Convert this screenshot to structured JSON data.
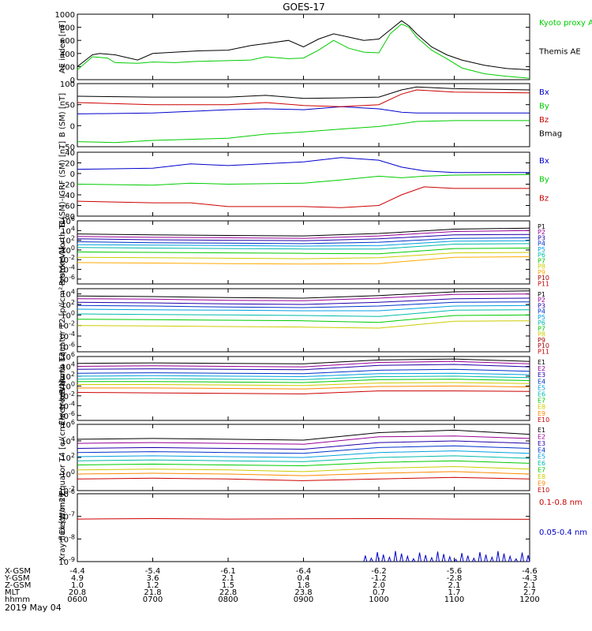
{
  "title": "GOES-17",
  "date_label": "2019 May 04",
  "time_ticks": [
    "0600",
    "0700",
    "0800",
    "0900",
    "1000",
    "1100",
    "1200"
  ],
  "ephemeris": {
    "rows": [
      {
        "label": "X-GSM",
        "values": [
          "-4.4",
          "-5.4",
          "-6.1",
          "-6.4",
          "-6.2",
          "-5.6",
          "-4.6"
        ]
      },
      {
        "label": "Y-GSM",
        "values": [
          "4.9",
          "3.6",
          "2.1",
          "0.4",
          "-1.2",
          "-2.8",
          "-4.3"
        ]
      },
      {
        "label": "Z-GSM",
        "values": [
          "1.0",
          "1.2",
          "1.5",
          "1.8",
          "2.0",
          "2.1",
          "2.1"
        ]
      },
      {
        "label": "MLT",
        "values": [
          "20.8",
          "21.8",
          "22.8",
          "23.8",
          "0.7",
          "1.7",
          "2.7"
        ]
      },
      {
        "label": "hhmm",
        "values": [
          "0600",
          "0700",
          "0800",
          "0900",
          "1000",
          "1100",
          "1200"
        ]
      }
    ]
  },
  "chart_data": [
    {
      "type": "line",
      "ylabel": "AE index [nT]",
      "ylim": [
        0,
        1000
      ],
      "yticks": [
        "0",
        "200",
        "400",
        "600",
        "800",
        "1000"
      ],
      "yscale": "linear",
      "xlim_hours": [
        6,
        12
      ],
      "series": [
        {
          "name": "Kyoto proxy AE",
          "color": "#00cc00",
          "x": [
            6.0,
            6.2,
            6.4,
            6.5,
            6.8,
            7.0,
            7.3,
            7.6,
            8.0,
            8.3,
            8.5,
            8.8,
            9.0,
            9.2,
            9.4,
            9.6,
            9.8,
            10.0,
            10.15,
            10.3,
            10.4,
            10.5,
            10.7,
            10.9,
            11.1,
            11.4,
            11.7,
            12.0
          ],
          "y": [
            150,
            350,
            330,
            260,
            250,
            270,
            260,
            280,
            290,
            300,
            350,
            320,
            330,
            450,
            600,
            480,
            420,
            410,
            700,
            850,
            800,
            650,
            450,
            320,
            180,
            90,
            50,
            20
          ]
        },
        {
          "name": "Themis AE",
          "color": "#000000",
          "x": [
            6.0,
            6.2,
            6.3,
            6.5,
            6.8,
            7.0,
            7.3,
            7.6,
            8.0,
            8.3,
            8.5,
            8.8,
            9.0,
            9.2,
            9.4,
            9.6,
            9.8,
            10.0,
            10.15,
            10.3,
            10.4,
            10.5,
            10.7,
            10.9,
            11.1,
            11.4,
            11.7,
            12.0
          ],
          "y": [
            200,
            380,
            400,
            380,
            300,
            400,
            420,
            440,
            450,
            520,
            550,
            600,
            500,
            620,
            700,
            650,
            600,
            620,
            760,
            900,
            820,
            700,
            500,
            380,
            300,
            220,
            170,
            150
          ]
        }
      ],
      "legend_position": "right"
    },
    {
      "type": "line",
      "ylabel": "B (SM) [nT]",
      "ylim": [
        -50,
        100
      ],
      "yticks": [
        "-50",
        "0",
        "50",
        "100"
      ],
      "yscale": "linear",
      "xlim_hours": [
        6,
        12
      ],
      "series": [
        {
          "name": "Bx",
          "color": "#0000cc",
          "x": [
            6.0,
            7.0,
            8.0,
            8.5,
            9.0,
            9.5,
            10.0,
            10.3,
            10.5,
            11.0,
            12.0
          ],
          "y": [
            28,
            30,
            38,
            40,
            38,
            45,
            40,
            32,
            30,
            30,
            30
          ]
        },
        {
          "name": "By",
          "color": "#00cc00",
          "x": [
            6.0,
            6.5,
            7.0,
            8.0,
            8.5,
            9.0,
            9.5,
            10.0,
            10.3,
            10.5,
            11.0,
            12.0
          ],
          "y": [
            -38,
            -40,
            -35,
            -30,
            -20,
            -15,
            -8,
            -2,
            5,
            10,
            12,
            12
          ]
        },
        {
          "name": "Bz",
          "color": "#cc0000",
          "x": [
            6.0,
            7.0,
            8.0,
            8.5,
            9.0,
            9.5,
            10.0,
            10.3,
            10.5,
            11.0,
            12.0
          ],
          "y": [
            55,
            50,
            50,
            55,
            48,
            45,
            50,
            75,
            85,
            80,
            78
          ]
        },
        {
          "name": "Bmag",
          "color": "#000000",
          "x": [
            6.0,
            7.0,
            8.0,
            8.5,
            9.0,
            9.5,
            10.0,
            10.3,
            10.5,
            11.0,
            12.0
          ],
          "y": [
            70,
            68,
            68,
            72,
            65,
            66,
            68,
            85,
            92,
            88,
            85
          ]
        }
      ],
      "legend_position": "right"
    },
    {
      "type": "line",
      "ylabel": "B (SM)-IGRF (SM) [nT]",
      "ylim": [
        -80,
        40
      ],
      "yticks": [
        "-80",
        "-60",
        "-40",
        "-20",
        "0",
        "20",
        "40"
      ],
      "yscale": "linear",
      "xlim_hours": [
        6,
        12
      ],
      "series": [
        {
          "name": "Bx",
          "color": "#0000cc",
          "x": [
            6.0,
            7.0,
            7.5,
            8.0,
            9.0,
            9.5,
            10.0,
            10.3,
            10.6,
            11.0,
            12.0
          ],
          "y": [
            8,
            10,
            18,
            15,
            22,
            30,
            25,
            12,
            5,
            2,
            2
          ]
        },
        {
          "name": "By",
          "color": "#00cc00",
          "x": [
            6.0,
            7.0,
            7.5,
            8.0,
            9.0,
            9.5,
            10.0,
            10.3,
            10.6,
            11.0,
            12.0
          ],
          "y": [
            -20,
            -22,
            -18,
            -20,
            -18,
            -12,
            -5,
            -8,
            -5,
            -3,
            -2
          ]
        },
        {
          "name": "Bz",
          "color": "#cc0000",
          "x": [
            6.0,
            7.0,
            7.5,
            8.0,
            9.0,
            9.5,
            10.0,
            10.3,
            10.6,
            11.0,
            12.0
          ],
          "y": [
            -52,
            -55,
            -55,
            -62,
            -62,
            -64,
            -60,
            -40,
            -25,
            -28,
            -28
          ]
        }
      ],
      "legend_position": "right"
    },
    {
      "type": "line",
      "ylabel": "Protons North T1",
      "ylim_exp": [
        -7,
        6
      ],
      "yticks": [
        "10^-6",
        "10^-4",
        "10^-2",
        "10^0",
        "10^2",
        "10^4",
        "10^6"
      ],
      "yscale": "log",
      "xlim_hours": [
        6,
        12
      ],
      "channels": [
        "P1",
        "P2",
        "P3",
        "P4",
        "P5",
        "P6",
        "P7",
        "P8",
        "P9",
        "P10",
        "P11"
      ],
      "series": [
        {
          "name": "P1",
          "color": "#000000",
          "y_log10": [
            3.3,
            3.1,
            3.0,
            2.9,
            3.4,
            4.3,
            4.5
          ]
        },
        {
          "name": "P2",
          "color": "#990099",
          "y_log10": [
            2.8,
            2.6,
            2.5,
            2.4,
            2.9,
            3.8,
            4.0
          ]
        },
        {
          "name": "P3",
          "color": "#2200aa",
          "y_log10": [
            2.3,
            2.1,
            2.0,
            1.9,
            2.3,
            3.1,
            3.2
          ]
        },
        {
          "name": "P4",
          "color": "#0033cc",
          "y_log10": [
            1.7,
            1.5,
            1.4,
            1.3,
            1.6,
            2.4,
            2.5
          ]
        },
        {
          "name": "P5",
          "color": "#00a0e0",
          "y_log10": [
            1.1,
            1.0,
            0.9,
            0.8,
            0.9,
            1.8,
            1.9
          ]
        },
        {
          "name": "P6",
          "color": "#00bbaa",
          "y_log10": [
            0.5,
            0.4,
            0.3,
            0.2,
            0.2,
            1.2,
            1.3
          ]
        },
        {
          "name": "P7",
          "color": "#00cc00",
          "y_log10": [
            -0.4,
            -0.5,
            -0.6,
            -0.7,
            -0.8,
            0.3,
            0.4
          ]
        },
        {
          "name": "P8",
          "color": "#cccc00",
          "y_log10": [
            -1.5,
            -1.6,
            -1.7,
            -1.8,
            -1.6,
            -0.6,
            -0.5
          ]
        },
        {
          "name": "P9",
          "color": "#ffaa00",
          "y_log10": [
            -2.6,
            -2.7,
            -2.8,
            -2.9,
            -2.8,
            -1.5,
            -1.4
          ]
        }
      ],
      "legend_position": "right"
    },
    {
      "type": "line",
      "ylabel": "Protons Equator T2 [p/(cm²-s-sr-keV)]",
      "ylim_exp": [
        -7,
        5
      ],
      "yticks": [
        "10^-6",
        "10^-4",
        "10^-2",
        "10^0",
        "10^2",
        "10^4"
      ],
      "yscale": "log",
      "xlim_hours": [
        6,
        12
      ],
      "channels": [
        "P1",
        "P2",
        "P3",
        "P4",
        "P5",
        "P6",
        "P7",
        "P8",
        "P9",
        "P10",
        "P11"
      ],
      "series": [
        {
          "name": "P1",
          "color": "#000000",
          "y_log10": [
            3.6,
            3.5,
            3.3,
            3.2,
            3.7,
            4.4,
            4.6
          ]
        },
        {
          "name": "P2",
          "color": "#990099",
          "y_log10": [
            3.1,
            3.0,
            2.8,
            2.7,
            3.2,
            3.9,
            4.0
          ]
        },
        {
          "name": "P3",
          "color": "#2200aa",
          "y_log10": [
            2.4,
            2.3,
            2.1,
            2.0,
            2.4,
            3.1,
            3.2
          ]
        },
        {
          "name": "P4",
          "color": "#0033cc",
          "y_log10": [
            1.8,
            1.7,
            1.5,
            1.4,
            1.7,
            2.4,
            2.5
          ]
        },
        {
          "name": "P5",
          "color": "#00a0e0",
          "y_log10": [
            1.1,
            1.0,
            0.9,
            0.8,
            0.8,
            1.7,
            1.8
          ]
        },
        {
          "name": "P6",
          "color": "#00bbaa",
          "y_log10": [
            0.2,
            0.1,
            0.0,
            -0.1,
            -0.3,
            0.9,
            1.0
          ]
        },
        {
          "name": "P7",
          "color": "#00cc00",
          "y_log10": [
            -0.8,
            -0.9,
            -1.0,
            -1.1,
            -1.4,
            -0.1,
            0.0
          ]
        },
        {
          "name": "P8",
          "color": "#cccc00",
          "y_log10": [
            -2.0,
            -2.1,
            -2.2,
            -2.3,
            -2.5,
            -1.2,
            -1.1
          ]
        }
      ],
      "legend_position": "right"
    },
    {
      "type": "line",
      "ylabel": "Electrons North T3",
      "ylim_exp": [
        -7,
        6
      ],
      "yticks": [
        "10^-6",
        "10^-4",
        "10^-2",
        "10^0",
        "10^2",
        "10^4",
        "10^6"
      ],
      "yscale": "log",
      "xlim_hours": [
        6,
        12
      ],
      "channels": [
        "E1",
        "E2",
        "E3",
        "E4",
        "E5",
        "E6",
        "E7",
        "E8",
        "E9",
        "E10"
      ],
      "series": [
        {
          "name": "E1",
          "color": "#000000",
          "y_log10": [
            4.6,
            4.7,
            4.6,
            4.5,
            5.3,
            5.5,
            5.0
          ]
        },
        {
          "name": "E2",
          "color": "#990099",
          "y_log10": [
            4.0,
            4.1,
            4.0,
            3.9,
            4.8,
            5.0,
            4.5
          ]
        },
        {
          "name": "E3",
          "color": "#2200aa",
          "y_log10": [
            3.4,
            3.5,
            3.4,
            3.3,
            4.2,
            4.4,
            3.9
          ]
        },
        {
          "name": "E4",
          "color": "#0033cc",
          "y_log10": [
            2.6,
            2.7,
            2.6,
            2.5,
            3.2,
            3.4,
            3.0
          ]
        },
        {
          "name": "E5",
          "color": "#00a0e0",
          "y_log10": [
            2.0,
            2.1,
            2.0,
            1.9,
            2.5,
            2.6,
            2.3
          ]
        },
        {
          "name": "E6",
          "color": "#00bbaa",
          "y_log10": [
            1.4,
            1.5,
            1.4,
            1.3,
            1.9,
            2.0,
            1.7
          ]
        },
        {
          "name": "E7",
          "color": "#00cc00",
          "y_log10": [
            0.9,
            0.9,
            0.8,
            0.7,
            1.3,
            1.4,
            1.1
          ]
        },
        {
          "name": "E8",
          "color": "#cccc00",
          "y_log10": [
            0.3,
            0.3,
            0.2,
            0.1,
            0.6,
            0.7,
            0.5
          ]
        },
        {
          "name": "E9",
          "color": "#ff8800",
          "y_log10": [
            -0.4,
            -0.4,
            -0.5,
            -0.6,
            -0.1,
            0.0,
            -0.2
          ]
        },
        {
          "name": "E10",
          "color": "#cc0000",
          "y_log10": [
            -1.3,
            -1.4,
            -1.5,
            -1.6,
            -1.0,
            -1.0,
            -1.1
          ]
        }
      ],
      "legend_position": "right"
    },
    {
      "type": "line",
      "ylabel": "Electrons Equator T4 [e/(cm²-s-sr-keV)]",
      "ylim_exp": [
        -2,
        6
      ],
      "yticks": [
        "10^-2",
        "10^0",
        "10^2",
        "10^4",
        "10^6"
      ],
      "yscale": "log",
      "xlim_hours": [
        6,
        12
      ],
      "channels": [
        "E1",
        "E2",
        "E3",
        "E4",
        "E5",
        "E6",
        "E7",
        "E8",
        "E9",
        "E10"
      ],
      "series": [
        {
          "name": "E1",
          "color": "#000000",
          "y_log10": [
            4.2,
            4.3,
            4.2,
            4.1,
            5.0,
            5.3,
            4.8
          ]
        },
        {
          "name": "E2",
          "color": "#990099",
          "y_log10": [
            3.7,
            3.8,
            3.7,
            3.6,
            4.5,
            4.6,
            4.3
          ]
        },
        {
          "name": "E3",
          "color": "#2200aa",
          "y_log10": [
            3.1,
            3.2,
            3.1,
            3.0,
            3.8,
            4.0,
            3.7
          ]
        },
        {
          "name": "E4",
          "color": "#0033cc",
          "y_log10": [
            2.6,
            2.7,
            2.6,
            2.5,
            3.2,
            3.4,
            3.1
          ]
        },
        {
          "name": "E5",
          "color": "#00a0e0",
          "y_log10": [
            2.1,
            2.2,
            2.1,
            2.0,
            2.6,
            2.8,
            2.5
          ]
        },
        {
          "name": "E6",
          "color": "#00bbaa",
          "y_log10": [
            1.6,
            1.7,
            1.6,
            1.5,
            2.0,
            2.2,
            1.9
          ]
        },
        {
          "name": "E7",
          "color": "#00cc00",
          "y_log10": [
            1.1,
            1.2,
            1.1,
            1.0,
            1.4,
            1.6,
            1.3
          ]
        },
        {
          "name": "E8",
          "color": "#cccc00",
          "y_log10": [
            0.5,
            0.6,
            0.5,
            0.3,
            0.7,
            0.9,
            0.6
          ]
        },
        {
          "name": "E9",
          "color": "#ff8800",
          "y_log10": [
            0.0,
            0.1,
            0.0,
            -0.2,
            0.1,
            0.3,
            0.0
          ]
        },
        {
          "name": "E10",
          "color": "#cc0000",
          "y_log10": [
            -0.6,
            -0.5,
            -0.6,
            -0.8,
            -0.6,
            -0.4,
            -0.6
          ]
        }
      ],
      "legend_position": "right"
    },
    {
      "type": "line",
      "ylabel": "Xray flux [W/m2]",
      "ylim_exp": [
        -9,
        -6
      ],
      "yticks": [
        "10^-9",
        "10^-8",
        "10^-7",
        "10^-6"
      ],
      "yscale": "log",
      "xlim_hours": [
        6,
        12
      ],
      "series": [
        {
          "name": "0.1-0.8 nm",
          "color": "#cc0000",
          "y_log10": [
            -7.12,
            -7.1,
            -7.12,
            -7.11,
            -7.1,
            -7.12,
            -7.13
          ]
        },
        {
          "name": "0.05-0.4 nm",
          "color": "#0000cc",
          "note": "sparse noise near 10^-9 after ~0950"
        }
      ],
      "legend_position": "right"
    }
  ]
}
